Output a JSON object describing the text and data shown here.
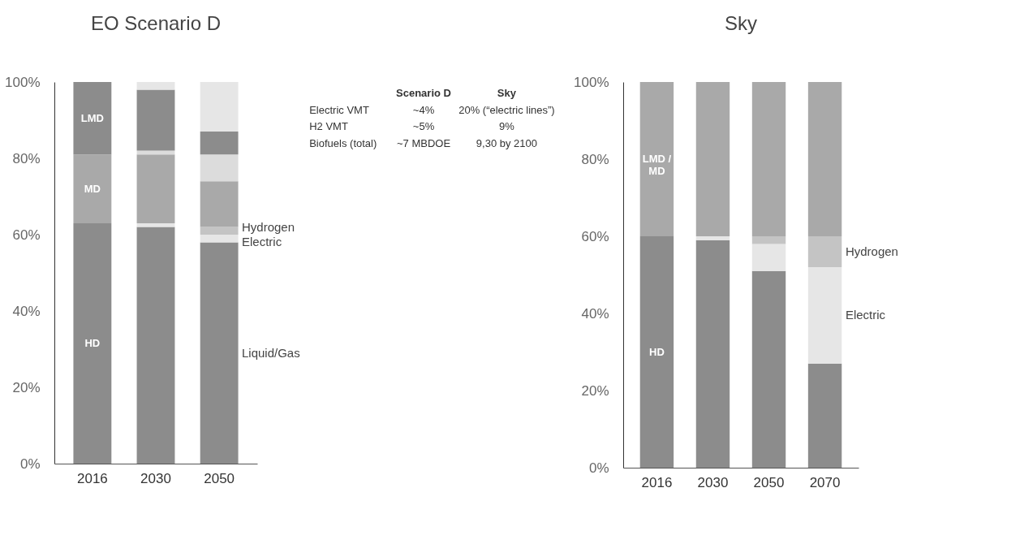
{
  "chart_data": [
    {
      "type": "bar",
      "title": "EO Scenario D",
      "stacked": true,
      "categories": [
        "2016",
        "2030",
        "2050"
      ],
      "ylim": [
        0,
        100
      ],
      "yticks": [
        {
          "value": 0,
          "label": "0%"
        },
        {
          "value": 20,
          "label": "20%"
        },
        {
          "value": 40,
          "label": "40%"
        },
        {
          "value": 60,
          "label": "60%"
        },
        {
          "value": 80,
          "label": "80%"
        },
        {
          "value": 100,
          "label": "100%"
        }
      ],
      "grid": false,
      "legend": false,
      "series": [
        {
          "name": "Liquid/Gas",
          "color": "#8c8c8c",
          "values": [
            63,
            62,
            58
          ]
        },
        {
          "name": "Electric",
          "color": "#e6e6e6",
          "values": [
            0,
            1,
            2
          ]
        },
        {
          "name": "Hydrogen",
          "color": "#c4c4c4",
          "values": [
            0,
            0,
            2
          ]
        },
        {
          "color": "#a9a9a9",
          "values": [
            18,
            18,
            12
          ]
        },
        {
          "color": "#dcdcdc",
          "values": [
            0,
            1,
            7
          ]
        },
        {
          "color": "#8c8c8c",
          "values": [
            19,
            16,
            6
          ]
        },
        {
          "color": "#e6e6e6",
          "values": [
            0,
            2,
            13
          ]
        }
      ],
      "annotations": [
        "LMD",
        "MD",
        "HD"
      ]
    },
    {
      "type": "other",
      "annotations": [
        "Scenario D",
        "Sky",
        "Electric VMT",
        "~4%",
        "20% (“electric lines”)",
        "H2 VMT",
        "~5%",
        "9%",
        "Biofuels (total)",
        "~7 MBDOE",
        "9,30 by 2100"
      ]
    },
    {
      "type": "bar",
      "title": "Sky",
      "stacked": true,
      "categories": [
        "2016",
        "2030",
        "2050",
        "2070"
      ],
      "ylim": [
        0,
        100
      ],
      "yticks": [
        {
          "value": 0,
          "label": "0%"
        },
        {
          "value": 20,
          "label": "20%"
        },
        {
          "value": 40,
          "label": "40%"
        },
        {
          "value": 60,
          "label": "60%"
        },
        {
          "value": 80,
          "label": "80%"
        },
        {
          "value": 100,
          "label": "100%"
        }
      ],
      "grid": false,
      "legend": false,
      "series": [
        {
          "color": "#8c8c8c",
          "values": [
            60,
            59,
            51,
            27
          ]
        },
        {
          "name": "Electric",
          "color": "#e6e6e6",
          "values": [
            0,
            1,
            7,
            25
          ]
        },
        {
          "name": "Hydrogen",
          "color": "#c4c4c4",
          "values": [
            0,
            0,
            2,
            8
          ]
        },
        {
          "color": "#a9a9a9",
          "values": [
            40,
            40,
            40,
            40
          ]
        }
      ],
      "annotations": [
        "LMD /\nMD",
        "HD"
      ]
    }
  ]
}
